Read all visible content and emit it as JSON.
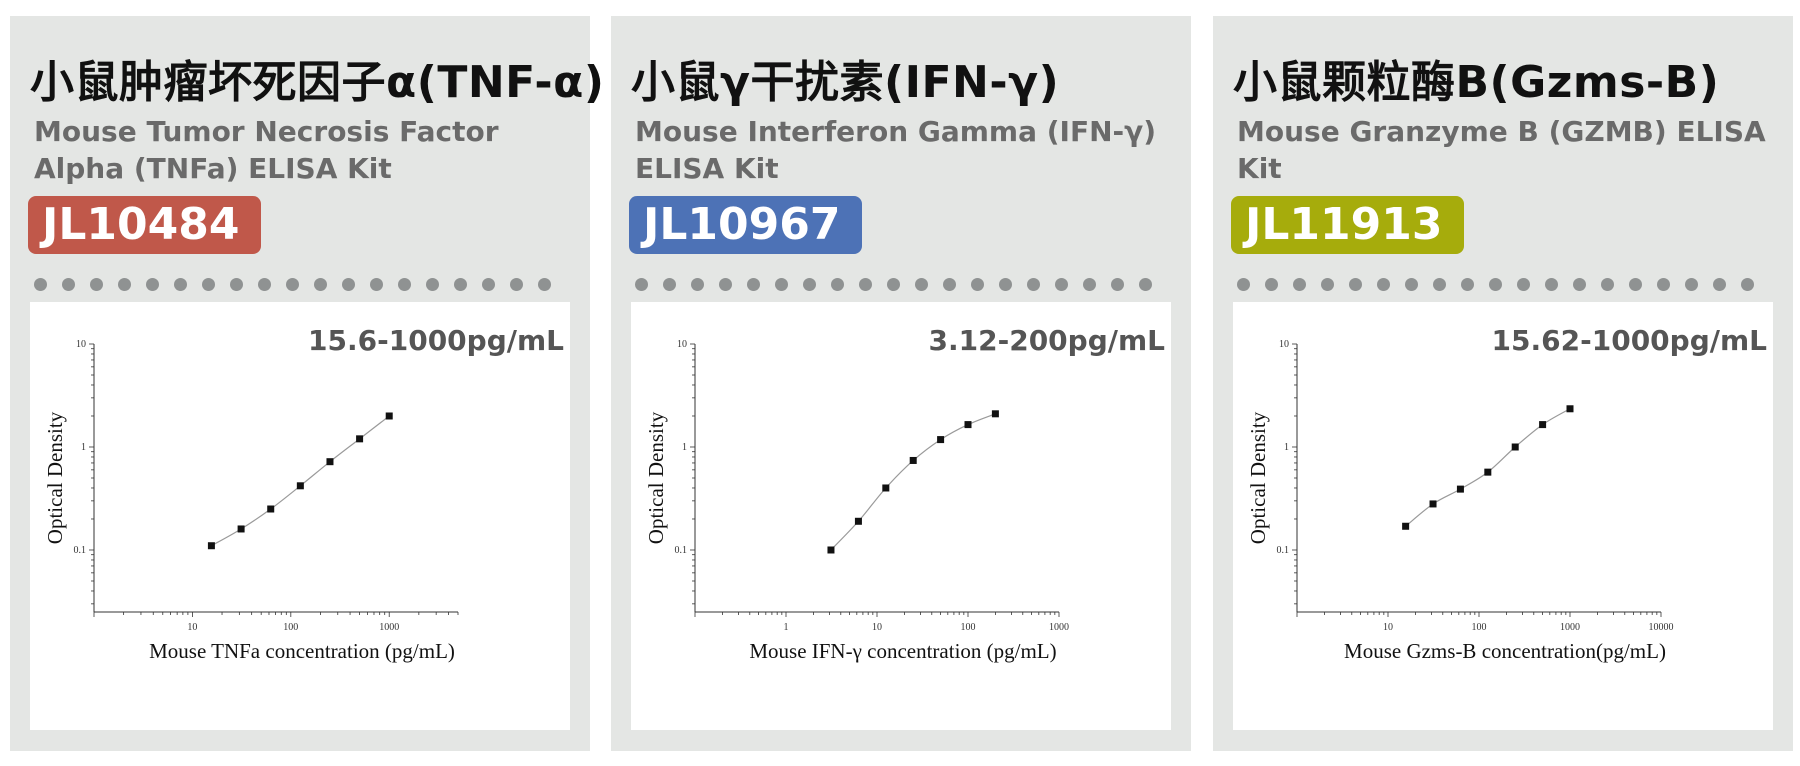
{
  "colors": {
    "panel_bg": "#e4e6e4",
    "dot": "#8f9292",
    "curve": "#9a9a9a",
    "point": "#111111"
  },
  "panels": [
    {
      "title": "小鼠肿瘤坏死因子α(TNF-α)",
      "subtitle": "Mouse Tumor Necrosis Factor Alpha (TNFa) ELISA Kit",
      "code": "JL10484",
      "code_color": "#c0584a",
      "range": "15.6-1000pg/mL"
    },
    {
      "title": "小鼠γ干扰素(IFN-γ)",
      "subtitle": "Mouse Interferon Gamma (IFN-γ) ELISA Kit",
      "code": "JL10967",
      "code_color": "#4d72b6",
      "range": "3.12-200pg/mL"
    },
    {
      "title": "小鼠颗粒酶B(Gzms-B)",
      "subtitle": "Mouse Granzyme B (GZMB) ELISA Kit",
      "code": "JL11913",
      "code_color": "#a6ac0c",
      "range": "15.62-1000pg/mL"
    }
  ],
  "chart_data": [
    {
      "type": "scatter",
      "xscale": "log",
      "yscale": "log",
      "xlim": [
        1,
        5000
      ],
      "ylim": [
        0.025,
        10
      ],
      "xticks": [
        "10",
        "100",
        "1000"
      ],
      "yticks": [
        "0.1",
        "1",
        "10"
      ],
      "xlabel": "Mouse TNFa concentration (pg/mL)",
      "ylabel": "Optical Density",
      "x": [
        15.6,
        31.25,
        62.5,
        125,
        250,
        500,
        1000
      ],
      "y": [
        0.11,
        0.16,
        0.25,
        0.42,
        0.72,
        1.2,
        2.0
      ]
    },
    {
      "type": "scatter",
      "xscale": "log",
      "yscale": "log",
      "xlim": [
        0.1,
        1000
      ],
      "ylim": [
        0.025,
        10
      ],
      "xticks": [
        "1",
        "10",
        "100",
        "1000"
      ],
      "yticks": [
        "0.1",
        "1",
        "10"
      ],
      "xlabel": "Mouse IFN-γ concentration (pg/mL)",
      "ylabel": "Optical Density",
      "x": [
        3.12,
        6.25,
        12.5,
        25,
        50,
        100,
        200
      ],
      "y": [
        0.1,
        0.19,
        0.4,
        0.74,
        1.18,
        1.65,
        2.1
      ]
    },
    {
      "type": "scatter",
      "xscale": "log",
      "yscale": "log",
      "xlim": [
        1,
        10000
      ],
      "ylim": [
        0.025,
        10
      ],
      "xticks": [
        "10",
        "100",
        "1000",
        "10000"
      ],
      "yticks": [
        "0.1",
        "1",
        "10"
      ],
      "xlabel": "Mouse Gzms-B concentration(pg/mL)",
      "ylabel": "Optical Density",
      "x": [
        15.62,
        31.25,
        62.5,
        125,
        250,
        500,
        1000
      ],
      "y": [
        0.17,
        0.28,
        0.39,
        0.57,
        1.0,
        1.65,
        2.35
      ]
    }
  ]
}
